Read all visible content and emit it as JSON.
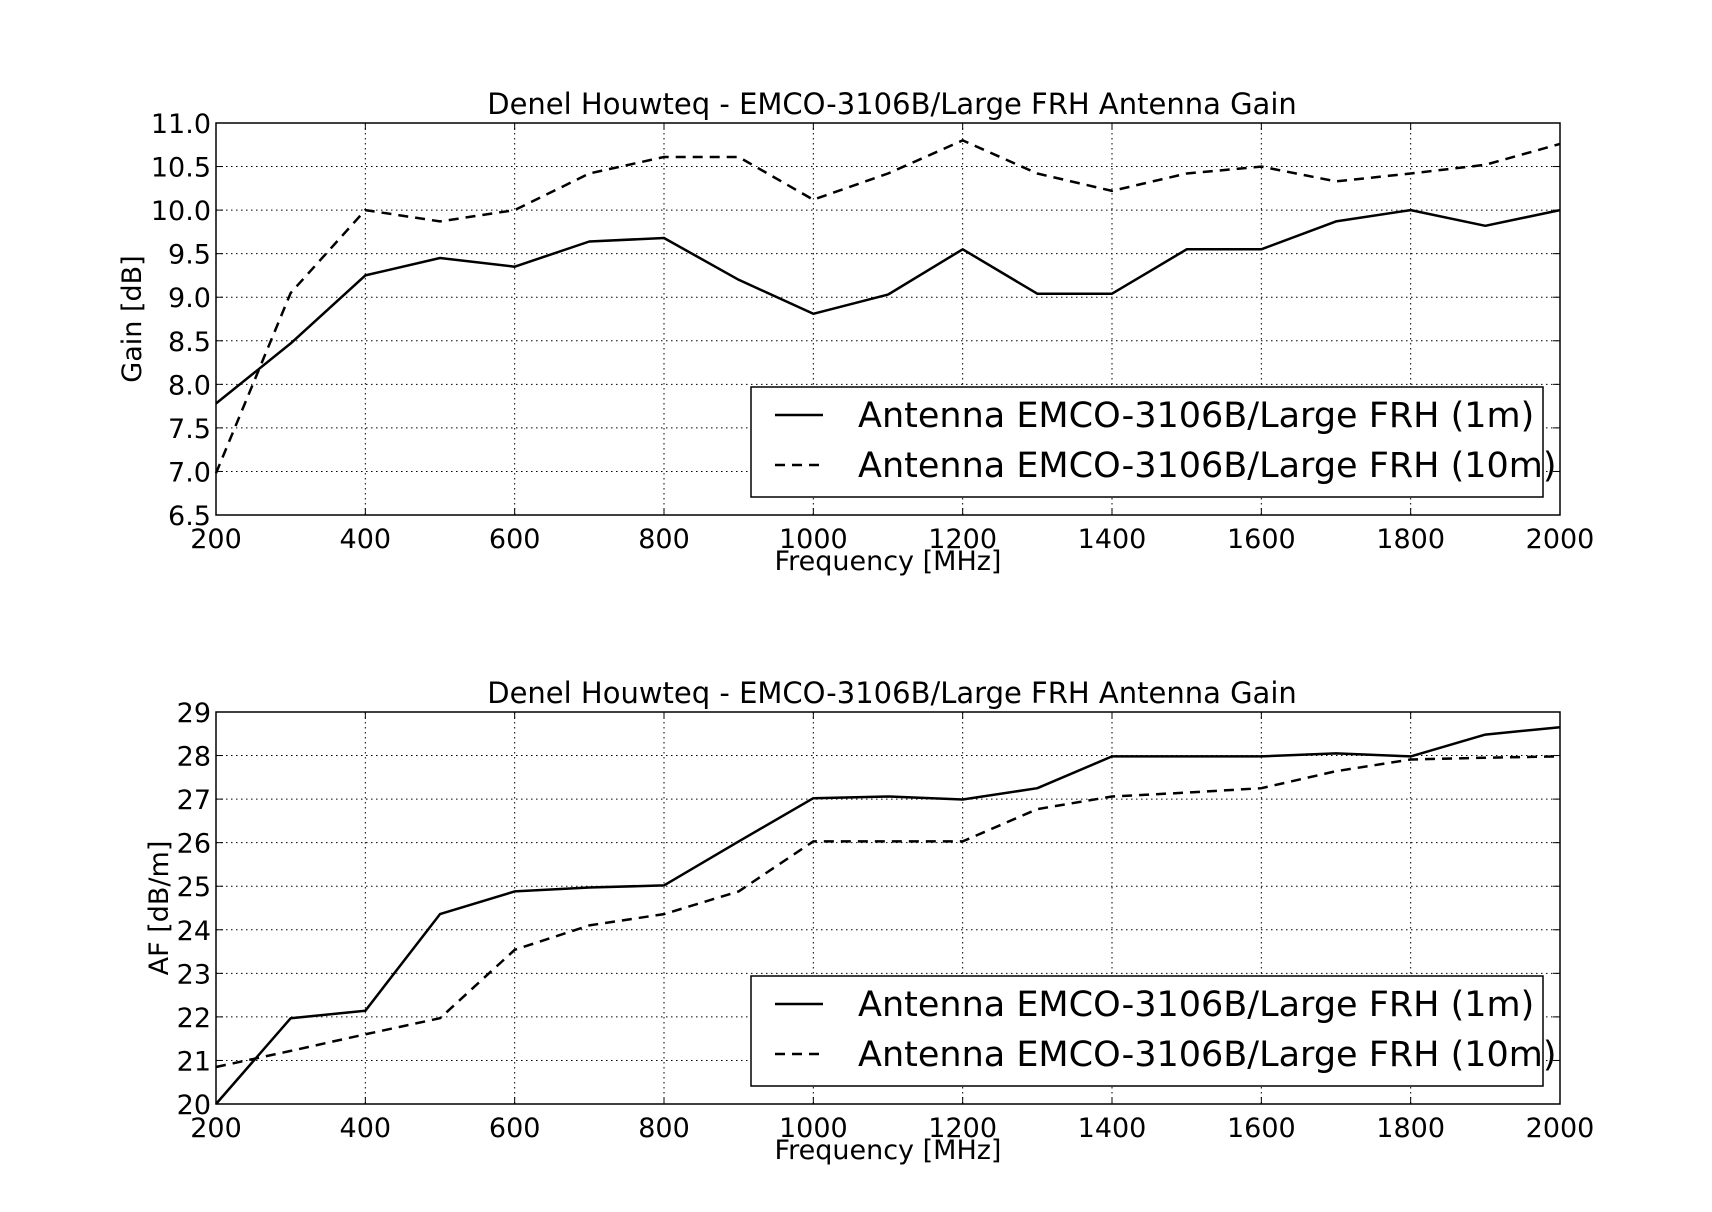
{
  "chart_data": [
    {
      "type": "line",
      "title": "Denel Houwteq - EMCO-3106B/Large FRH Antenna Gain",
      "xlabel": "Frequency [MHz]",
      "ylabel": "Gain [dB]",
      "xlim": [
        200,
        2000
      ],
      "ylim": [
        6.5,
        11.0
      ],
      "xticks": [
        "200",
        "400",
        "600",
        "800",
        "1000",
        "1200",
        "1400",
        "1600",
        "1800",
        "2000"
      ],
      "yticks": [
        "6.5",
        "7.0",
        "7.5",
        "8.0",
        "8.5",
        "9.0",
        "9.5",
        "10.0",
        "10.5",
        "11.0"
      ],
      "grid": true,
      "legend_position": "lower-right",
      "x": [
        200,
        300,
        400,
        500,
        600,
        700,
        800,
        900,
        1000,
        1100,
        1200,
        1300,
        1400,
        1500,
        1600,
        1700,
        1800,
        1900,
        2000
      ],
      "series": [
        {
          "name": "Antenna EMCO-3106B/Large FRH (1m)",
          "style": "solid",
          "values": [
            7.78,
            8.47,
            9.25,
            9.45,
            9.35,
            9.64,
            9.68,
            9.2,
            8.81,
            9.03,
            9.55,
            9.04,
            9.04,
            9.55,
            9.55,
            9.87,
            10.0,
            9.82,
            10.0
          ]
        },
        {
          "name": "Antenna EMCO-3106B/Large FRH (10m)",
          "style": "dashed",
          "values": [
            6.98,
            9.05,
            10.0,
            9.87,
            10.0,
            10.42,
            10.61,
            10.61,
            10.12,
            10.42,
            10.8,
            10.42,
            10.22,
            10.42,
            10.5,
            10.33,
            10.42,
            10.52,
            10.76
          ]
        }
      ]
    },
    {
      "type": "line",
      "title": "Denel Houwteq - EMCO-3106B/Large FRH Antenna Gain",
      "xlabel": "Frequency [MHz]",
      "ylabel": "AF [dB/m]",
      "xlim": [
        200,
        2000
      ],
      "ylim": [
        20,
        29
      ],
      "xticks": [
        "200",
        "400",
        "600",
        "800",
        "1000",
        "1200",
        "1400",
        "1600",
        "1800",
        "2000"
      ],
      "yticks": [
        "20",
        "21",
        "22",
        "23",
        "24",
        "25",
        "26",
        "27",
        "28",
        "29"
      ],
      "grid": true,
      "legend_position": "lower-right",
      "x": [
        200,
        300,
        400,
        500,
        600,
        700,
        800,
        900,
        1000,
        1100,
        1200,
        1300,
        1400,
        1500,
        1600,
        1700,
        1800,
        1900,
        2000
      ],
      "series": [
        {
          "name": "Antenna EMCO-3106B/Large FRH (1m)",
          "style": "solid",
          "values": [
            20.0,
            21.97,
            22.14,
            24.36,
            24.88,
            24.97,
            25.02,
            26.03,
            27.02,
            27.06,
            26.99,
            27.25,
            27.98,
            27.98,
            27.98,
            28.05,
            27.98,
            28.48,
            28.65
          ]
        },
        {
          "name": "Antenna EMCO-3106B/Large FRH (10m)",
          "style": "dashed",
          "values": [
            20.85,
            21.22,
            21.6,
            21.97,
            23.54,
            24.1,
            24.36,
            24.88,
            26.03,
            26.03,
            26.03,
            26.77,
            27.06,
            27.15,
            27.25,
            27.64,
            27.91,
            27.95,
            27.98
          ]
        }
      ]
    }
  ]
}
